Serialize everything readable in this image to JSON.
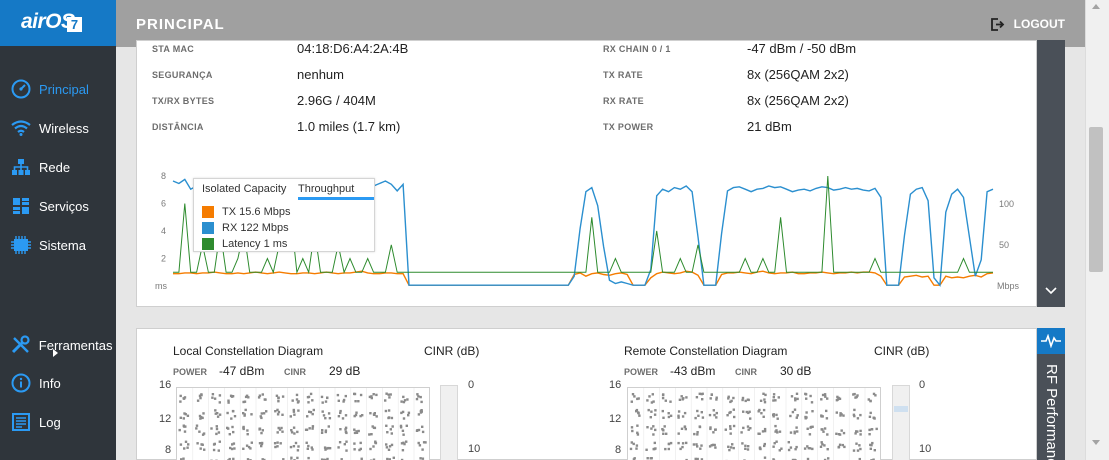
{
  "sidebar": {
    "logo": "airOS",
    "logo_badge": "7",
    "items": [
      {
        "label": "Principal",
        "icon": "dashboard-icon",
        "active": true
      },
      {
        "label": "Wireless",
        "icon": "wifi-icon"
      },
      {
        "label": "Rede",
        "icon": "network-icon"
      },
      {
        "label": "Serviços",
        "icon": "services-icon"
      },
      {
        "label": "Sistema",
        "icon": "system-icon"
      }
    ],
    "bottom_items": [
      {
        "label": "Ferramentas",
        "icon": "tools-icon"
      },
      {
        "label": "Info",
        "icon": "info-icon"
      },
      {
        "label": "Log",
        "icon": "log-icon"
      }
    ]
  },
  "header": {
    "title": "PRINCIPAL",
    "logout_label": "LOGOUT"
  },
  "status": {
    "left": [
      {
        "label": "STA MAC",
        "value": "04:18:D6:A4:2A:4B"
      },
      {
        "label": "SEGURANÇA",
        "value": "nenhum"
      },
      {
        "label": "TX/RX BYTES",
        "value": "2.96G / 404M"
      },
      {
        "label": "DISTÂNCIA",
        "value": "1.0 miles (1.7 km)"
      }
    ],
    "right": [
      {
        "label": "RX CHAIN 0 / 1",
        "value": "-47 dBm / -50 dBm"
      },
      {
        "label": "TX RATE",
        "value": "8x (256QAM 2x2)"
      },
      {
        "label": "RX RATE",
        "value": "8x (256QAM 2x2)"
      },
      {
        "label": "TX POWER",
        "value": "21 dBm"
      }
    ]
  },
  "throughput_popup": {
    "tabs": [
      "Isolated Capacity",
      "Throughput"
    ],
    "active_tab": "Throughput",
    "legend": [
      {
        "label": "TX 15.6 Mbps",
        "color": "#f57c00"
      },
      {
        "label": "RX 122 Mbps",
        "color": "#2b8fcf"
      },
      {
        "label": "Latency 1 ms",
        "color": "#2e8b2e"
      }
    ]
  },
  "chart_data": {
    "type": "line",
    "left_axis": {
      "unit": "ms",
      "ticks": [
        "2",
        "4",
        "6",
        "8"
      ]
    },
    "right_axis": {
      "unit": "Mbps",
      "ticks": [
        "50",
        "100"
      ]
    },
    "series": [
      {
        "name": "TX",
        "color": "#f57c00",
        "values": [
          15,
          15,
          16,
          16,
          15,
          16,
          16,
          17,
          16,
          15,
          15,
          16,
          15,
          16,
          17,
          16,
          15,
          16,
          17,
          16,
          15,
          15,
          16,
          16,
          15,
          16,
          17,
          16,
          15,
          16,
          16,
          17,
          18,
          16,
          15,
          15,
          16,
          16,
          15,
          15,
          1,
          1,
          1,
          1,
          1,
          1,
          1,
          1,
          1,
          1,
          1,
          1,
          1,
          1,
          1,
          1,
          1,
          1,
          1,
          1,
          1,
          1,
          1,
          1,
          1,
          1,
          1,
          1,
          14,
          16,
          12,
          15,
          16,
          14,
          13,
          15,
          16,
          14,
          1,
          1,
          1,
          10,
          15,
          17,
          16,
          15,
          16,
          18,
          17,
          13,
          1,
          1,
          1,
          14,
          16,
          16,
          17,
          16,
          15,
          17,
          18,
          16,
          15,
          16,
          16,
          17,
          15,
          15,
          16,
          16,
          17,
          16,
          15,
          16,
          16,
          17,
          16,
          17,
          17,
          16,
          12,
          1,
          1,
          1,
          11,
          12,
          13,
          11,
          12,
          1,
          1,
          12,
          10,
          11,
          10,
          12,
          13,
          11,
          15,
          16
        ]
      },
      {
        "name": "RX",
        "color": "#2b8fcf",
        "values": [
          128,
          125,
          130,
          118,
          122,
          128,
          120,
          110,
          125,
          124,
          130,
          126,
          128,
          122,
          124,
          127,
          126,
          122,
          128,
          125,
          124,
          127,
          126,
          122,
          124,
          128,
          126,
          125,
          124,
          127,
          130,
          120,
          125,
          118,
          122,
          125,
          128,
          124,
          116,
          124,
          1,
          1,
          1,
          1,
          1,
          1,
          1,
          1,
          1,
          1,
          1,
          1,
          1,
          1,
          1,
          1,
          1,
          1,
          1,
          1,
          1,
          1,
          1,
          1,
          1,
          1,
          1,
          1,
          12,
          70,
          115,
          120,
          98,
          48,
          7,
          3,
          5,
          3,
          1,
          1,
          1,
          20,
          110,
          118,
          115,
          120,
          118,
          122,
          115,
          60,
          1,
          1,
          1,
          64,
          116,
          120,
          121,
          118,
          115,
          118,
          119,
          122,
          120,
          121,
          118,
          115,
          117,
          118,
          116,
          119,
          121,
          120,
          117,
          118,
          120,
          118,
          119,
          117,
          116,
          119,
          108,
          1,
          1,
          1,
          62,
          112,
          118,
          120,
          104,
          10,
          1,
          90,
          112,
          118,
          108,
          60,
          12,
          32,
          115,
          118
        ]
      },
      {
        "name": "Latency",
        "color": "#2e8b2e",
        "values": [
          1,
          1,
          6,
          1,
          1,
          3,
          1,
          1,
          4,
          1,
          1,
          2,
          4,
          1,
          1,
          1,
          2,
          1,
          3,
          3,
          5,
          1,
          2,
          1,
          4,
          1,
          1,
          1,
          3,
          1,
          2,
          1,
          1,
          2,
          1,
          1,
          1,
          3,
          1,
          1,
          1,
          1,
          1,
          1,
          1,
          1,
          1,
          1,
          1,
          1,
          1,
          1,
          1,
          1,
          1,
          1,
          1,
          1,
          1,
          1,
          1,
          1,
          1,
          1,
          1,
          1,
          1,
          1,
          1,
          1,
          1,
          5,
          1,
          1,
          1,
          2,
          1,
          1,
          1,
          1,
          1,
          1,
          4,
          1,
          1,
          1,
          2,
          1,
          1,
          3,
          1,
          1,
          1,
          1,
          1,
          1,
          1,
          2,
          1,
          1,
          2,
          1,
          1,
          5,
          1,
          1,
          1,
          1,
          1,
          1,
          1,
          8,
          1,
          1,
          1,
          1,
          1,
          1,
          1,
          2,
          1,
          1,
          1,
          1,
          1,
          1,
          1,
          1,
          1,
          1,
          1,
          1,
          1,
          1,
          2,
          1,
          1,
          1,
          1,
          1
        ]
      }
    ]
  },
  "rf_tab": {
    "label": "RF Performance"
  },
  "constellation": {
    "local": {
      "title": "Local Constellation Diagram",
      "cinr_title": "CINR (dB)",
      "power_label": "POWER",
      "power_value": "-47 dBm",
      "cinr_label": "CINR",
      "cinr_value": "29 dB",
      "y_ticks": [
        "16",
        "12",
        "8"
      ],
      "cinr_ticks": [
        "0",
        "10"
      ]
    },
    "remote": {
      "title": "Remote Constellation Diagram",
      "cinr_title": "CINR (dB)",
      "power_label": "POWER",
      "power_value": "-43 dBm",
      "cinr_label": "CINR",
      "cinr_value": "30 dB",
      "y_ticks": [
        "16",
        "12",
        "8"
      ],
      "cinr_ticks": [
        "0",
        "10"
      ]
    }
  }
}
